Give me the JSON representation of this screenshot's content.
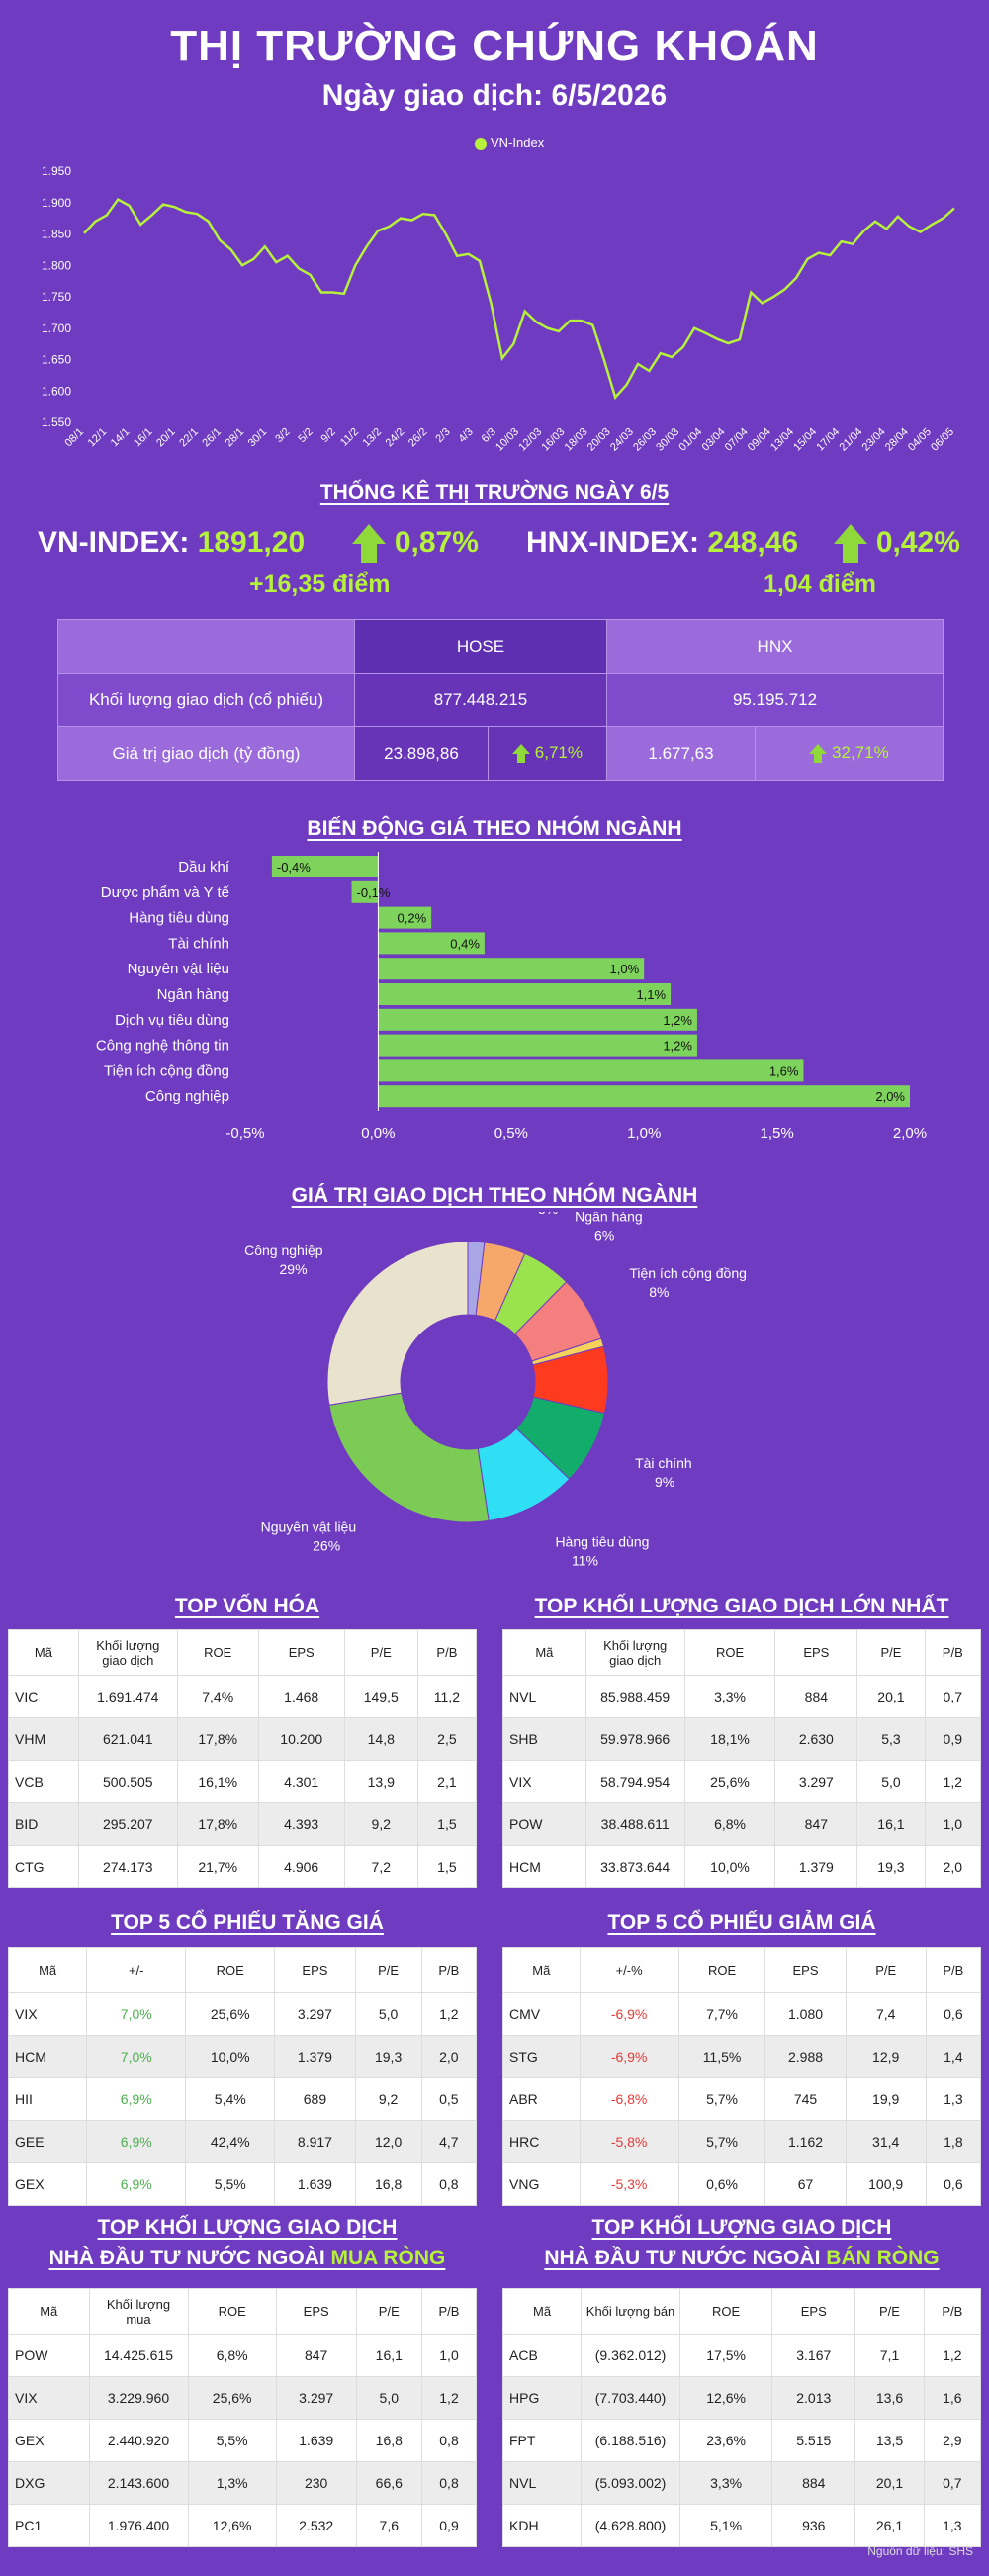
{
  "header": {
    "title": "THỊ TRƯỜNG CHỨNG KHOÁN",
    "subtitle": "Ngày giao dịch: 6/5/2026"
  },
  "line_chart": {
    "legend": "VN-Index",
    "line_color": "#b6f13b"
  },
  "chart_data": [
    {
      "type": "line",
      "series": [
        {
          "name": "VN-Index",
          "values": [
            1851,
            1870,
            1880,
            1905,
            1895,
            1865,
            1880,
            1897,
            1893,
            1885,
            1882,
            1870,
            1840,
            1825,
            1800,
            1810,
            1830,
            1805,
            1815,
            1795,
            1785,
            1757,
            1757,
            1755,
            1800,
            1830,
            1855,
            1862,
            1875,
            1872,
            1882,
            1880,
            1850,
            1815,
            1818,
            1807,
            1740,
            1652,
            1675,
            1727,
            1710,
            1700,
            1695,
            1712,
            1712,
            1705,
            1650,
            1590,
            1610,
            1643,
            1632,
            1660,
            1654,
            1670,
            1700,
            1692,
            1683,
            1676,
            1682,
            1757,
            1740,
            1750,
            1762,
            1780,
            1810,
            1820,
            1816,
            1838,
            1834,
            1855,
            1870,
            1858,
            1878,
            1862,
            1853,
            1865,
            1875,
            1891
          ]
        }
      ],
      "x_ticks": [
        "08/1",
        "12/1",
        "14/1",
        "16/1",
        "20/1",
        "22/1",
        "26/1",
        "28/1",
        "30/1",
        "3/2",
        "5/2",
        "9/2",
        "11/2",
        "13/2",
        "24/2",
        "26/2",
        "2/3",
        "4/3",
        "6/3",
        "10/03",
        "12/03",
        "16/03",
        "18/03",
        "20/03",
        "24/03",
        "26/03",
        "30/03",
        "01/04",
        "03/04",
        "07/04",
        "09/04",
        "13/04",
        "15/04",
        "17/04",
        "21/04",
        "23/04",
        "28/04",
        "04/05",
        "06/05"
      ],
      "y_ticks": [
        "1.550",
        "1.600",
        "1.650",
        "1.700",
        "1.750",
        "1.800",
        "1.850",
        "1.900",
        "1.950"
      ],
      "ylim": [
        1550,
        1950
      ],
      "grid": false,
      "legend_position": "top"
    },
    {
      "type": "bar",
      "title": "BIẾN ĐỘNG GIÁ THEO NHÓM NGÀNH",
      "categories": [
        "Dầu khí",
        "Dược phẩm và Y tế",
        "Hàng tiêu dùng",
        "Tài chính",
        "Nguyên vật liệu",
        "Ngân hàng",
        "Dịch vụ tiêu dùng",
        "Công nghệ thông tin",
        "Tiện ích cộng đồng",
        "Công nghiệp"
      ],
      "values": [
        -0.4,
        -0.1,
        0.2,
        0.4,
        1.0,
        1.1,
        1.2,
        1.2,
        1.6,
        2.0
      ],
      "value_labels": [
        "-0,4%",
        "-0,1%",
        "0,2%",
        "0,4%",
        "1,0%",
        "1,1%",
        "1,2%",
        "1,2%",
        "1,6%",
        "2,0%"
      ],
      "x_ticks": [
        "-0,5%",
        "0,0%",
        "0,5%",
        "1,0%",
        "1,5%",
        "2,0%"
      ],
      "xlim": [
        -0.5,
        2.0
      ],
      "bar_color": "#7dd35b"
    },
    {
      "type": "pie",
      "title": "GIÁ TRỊ GIAO DỊCH THEO NHÓM NGÀNH",
      "slices": [
        {
          "label": "",
          "value": 2,
          "color": "#a9a6e6"
        },
        {
          "label": "Dịch vụ tiêu dùng",
          "pct": "5%",
          "value": 5,
          "color": "#f5a86a"
        },
        {
          "label": "Ngân hàng",
          "pct": "6%",
          "value": 6,
          "color": "#9be34d"
        },
        {
          "label": "Tiện ích cộng đồng",
          "pct": "8%",
          "value": 8,
          "color": "#f47f7f"
        },
        {
          "label": "",
          "value": 1,
          "color": "#f6d25b"
        },
        {
          "label": "",
          "value": 8,
          "color": "#ff3b1f"
        },
        {
          "label": "Tài chính",
          "pct": "9%",
          "value": 9,
          "color": "#12ad6a"
        },
        {
          "label": "Hàng tiêu dùng",
          "pct": "11%",
          "value": 11,
          "color": "#2fe0f5"
        },
        {
          "label": "Nguyên vật liệu",
          "pct": "26%",
          "value": 26,
          "color": "#7ccb55"
        },
        {
          "label": "Công nghiệp",
          "pct": "29%",
          "value": 29,
          "color": "#e9e2cd"
        }
      ]
    }
  ],
  "stats": {
    "section_title": "THỐNG KÊ THỊ TRƯỜNG NGÀY 6/5",
    "vnindex": {
      "name": "VN-INDEX:",
      "value": "1891,20",
      "pct": "0,87%",
      "points": "+16,35 điểm"
    },
    "hnxindex": {
      "name": "HNX-INDEX:",
      "value": "248,46",
      "pct": "0,42%",
      "points": "1,04 điểm"
    },
    "table": {
      "col_hose": "HOSE",
      "col_hnx": "HNX",
      "row1_label": "Khối lượng giao dịch (cổ phiếu)",
      "row1_hose": "877.448.215",
      "row1_hnx": "95.195.712",
      "row2_label": "Giá trị giao dịch (tỷ đồng)",
      "row2_hose": "23.898,86",
      "row2_hose_pct": "6,71%",
      "row2_hnx": "1.677,63",
      "row2_hnx_pct": "32,71%"
    }
  },
  "tables": {
    "top_von_hoa": {
      "title": "TOP VỐN HÓA",
      "headers": [
        "Mã",
        "Khối lượng giao dịch",
        "ROE",
        "EPS",
        "P/E",
        "P/B"
      ],
      "rows": [
        [
          "VIC",
          "1.691.474",
          "7,4%",
          "1.468",
          "149,5",
          "11,2"
        ],
        [
          "VHM",
          "621.041",
          "17,8%",
          "10.200",
          "14,8",
          "2,5"
        ],
        [
          "VCB",
          "500.505",
          "16,1%",
          "4.301",
          "13,9",
          "2,1"
        ],
        [
          "BID",
          "295.207",
          "17,8%",
          "4.393",
          "9,2",
          "1,5"
        ],
        [
          "CTG",
          "274.173",
          "21,7%",
          "4.906",
          "7,2",
          "1,5"
        ]
      ]
    },
    "top_kl": {
      "title": "TOP KHỐI LƯỢNG GIAO DỊCH LỚN NHẤT",
      "headers": [
        "Mã",
        "Khối lượng giao dịch",
        "ROE",
        "EPS",
        "P/E",
        "P/B"
      ],
      "rows": [
        [
          "NVL",
          "85.988.459",
          "3,3%",
          "884",
          "20,1",
          "0,7"
        ],
        [
          "SHB",
          "59.978.966",
          "18,1%",
          "2.630",
          "5,3",
          "0,9"
        ],
        [
          "VIX",
          "58.794.954",
          "25,6%",
          "3.297",
          "5,0",
          "1,2"
        ],
        [
          "POW",
          "38.488.611",
          "6,8%",
          "847",
          "16,1",
          "1,0"
        ],
        [
          "HCM",
          "33.873.644",
          "10,0%",
          "1.379",
          "19,3",
          "2,0"
        ]
      ]
    },
    "top_tang": {
      "title": "TOP 5 CỔ PHIẾU TĂNG GIÁ",
      "headers": [
        "Mã",
        "+/-",
        "ROE",
        "EPS",
        "P/E",
        "P/B"
      ],
      "rows": [
        [
          "VIX",
          "7,0%",
          "25,6%",
          "3.297",
          "5,0",
          "1,2"
        ],
        [
          "HCM",
          "7,0%",
          "10,0%",
          "1.379",
          "19,3",
          "2,0"
        ],
        [
          "HII",
          "6,9%",
          "5,4%",
          "689",
          "9,2",
          "0,5"
        ],
        [
          "GEE",
          "6,9%",
          "42,4%",
          "8.917",
          "12,0",
          "4,7"
        ],
        [
          "GEX",
          "6,9%",
          "5,5%",
          "1.639",
          "16,8",
          "0,8"
        ]
      ]
    },
    "top_giam": {
      "title": "TOP 5 CỔ PHIẾU GIẢM GIÁ",
      "headers": [
        "Mã",
        "+/-%",
        "ROE",
        "EPS",
        "P/E",
        "P/B"
      ],
      "rows": [
        [
          "CMV",
          "-6,9%",
          "7,7%",
          "1.080",
          "7,4",
          "0,6"
        ],
        [
          "STG",
          "-6,9%",
          "11,5%",
          "2.988",
          "12,9",
          "1,4"
        ],
        [
          "ABR",
          "-6,8%",
          "5,7%",
          "745",
          "19,9",
          "1,3"
        ],
        [
          "HRC",
          "-5,8%",
          "5,7%",
          "1.162",
          "31,4",
          "1,8"
        ],
        [
          "VNG",
          "-5,3%",
          "0,6%",
          "67",
          "100,9",
          "0,6"
        ]
      ]
    },
    "mua_rong": {
      "title1": "TOP KHỐI LƯỢNG GIAO DỊCH",
      "title2a": "NHÀ ĐẦU TƯ NƯỚC NGOÀI ",
      "title2b": "MUA RÒNG",
      "headers": [
        "Mã",
        "Khối lượng mua",
        "ROE",
        "EPS",
        "P/E",
        "P/B"
      ],
      "rows": [
        [
          "POW",
          "14.425.615",
          "6,8%",
          "847",
          "16,1",
          "1,0"
        ],
        [
          "VIX",
          "3.229.960",
          "25,6%",
          "3.297",
          "5,0",
          "1,2"
        ],
        [
          "GEX",
          "2.440.920",
          "5,5%",
          "1.639",
          "16,8",
          "0,8"
        ],
        [
          "DXG",
          "2.143.600",
          "1,3%",
          "230",
          "66,6",
          "0,8"
        ],
        [
          "PC1",
          "1.976.400",
          "12,6%",
          "2.532",
          "7,6",
          "0,9"
        ]
      ]
    },
    "ban_rong": {
      "title1": "TOP KHỐI LƯỢNG GIAO DỊCH",
      "title2a": "NHÀ ĐẦU TƯ NƯỚC NGOÀI ",
      "title2b": "BÁN RÒNG",
      "headers": [
        "Mã",
        "Khối lượng bán",
        "ROE",
        "EPS",
        "P/E",
        "P/B"
      ],
      "rows": [
        [
          "ACB",
          "(9.362.012)",
          "17,5%",
          "3.167",
          "7,1",
          "1,2"
        ],
        [
          "HPG",
          "(7.703.440)",
          "12,6%",
          "2.013",
          "13,6",
          "1,6"
        ],
        [
          "FPT",
          "(6.188.516)",
          "23,6%",
          "5.515",
          "13,5",
          "2,9"
        ],
        [
          "NVL",
          "(5.093.002)",
          "3,3%",
          "884",
          "20,1",
          "0,7"
        ],
        [
          "KDH",
          "(4.628.800)",
          "5,1%",
          "936",
          "26,1",
          "1,3"
        ]
      ]
    }
  },
  "footer": {
    "source": "Nguồn dữ liệu: SHS"
  }
}
